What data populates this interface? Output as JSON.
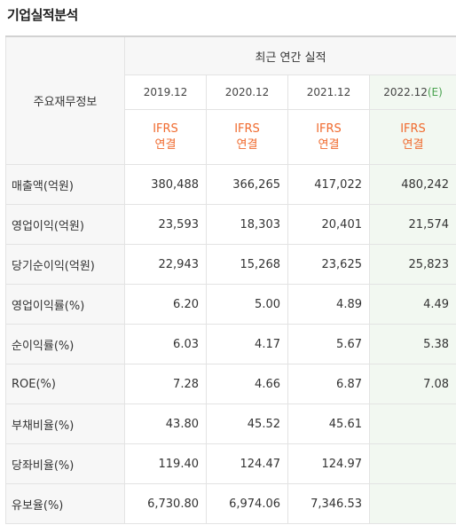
{
  "title": "기업실적분석",
  "header": {
    "group": "최근 연간 실적",
    "label": "주요재무정보",
    "years": [
      {
        "date": "2019.12",
        "suffix": ""
      },
      {
        "date": "2020.12",
        "suffix": ""
      },
      {
        "date": "2021.12",
        "suffix": ""
      },
      {
        "date": "2022.12",
        "suffix": "(E)"
      }
    ],
    "ifrs": [
      {
        "line1": "IFRS",
        "line2": "연결"
      },
      {
        "line1": "IFRS",
        "line2": "연결"
      },
      {
        "line1": "IFRS",
        "line2": "연결"
      },
      {
        "line1": "IFRS",
        "line2": "연결"
      }
    ]
  },
  "rows": [
    {
      "label": "매출액(억원)",
      "values": [
        "380,488",
        "366,265",
        "417,022",
        "480,242"
      ]
    },
    {
      "label": "영업이익(억원)",
      "values": [
        "23,593",
        "18,303",
        "20,401",
        "21,574"
      ]
    },
    {
      "label": "당기순이익(억원)",
      "values": [
        "22,943",
        "15,268",
        "23,625",
        "25,823"
      ]
    },
    {
      "label": "영업이익률(%)",
      "values": [
        "6.20",
        "5.00",
        "4.89",
        "4.49"
      ]
    },
    {
      "label": "순이익률(%)",
      "values": [
        "6.03",
        "4.17",
        "5.67",
        "5.38"
      ]
    },
    {
      "label": "ROE(%)",
      "values": [
        "7.28",
        "4.66",
        "6.87",
        "7.08"
      ]
    },
    {
      "label": "부채비율(%)",
      "values": [
        "43.80",
        "45.52",
        "45.61",
        ""
      ]
    },
    {
      "label": "당좌비율(%)",
      "values": [
        "119.40",
        "124.47",
        "124.97",
        ""
      ]
    },
    {
      "label": "유보율(%)",
      "values": [
        "6,730.80",
        "6,974.06",
        "7,346.53",
        ""
      ]
    }
  ]
}
